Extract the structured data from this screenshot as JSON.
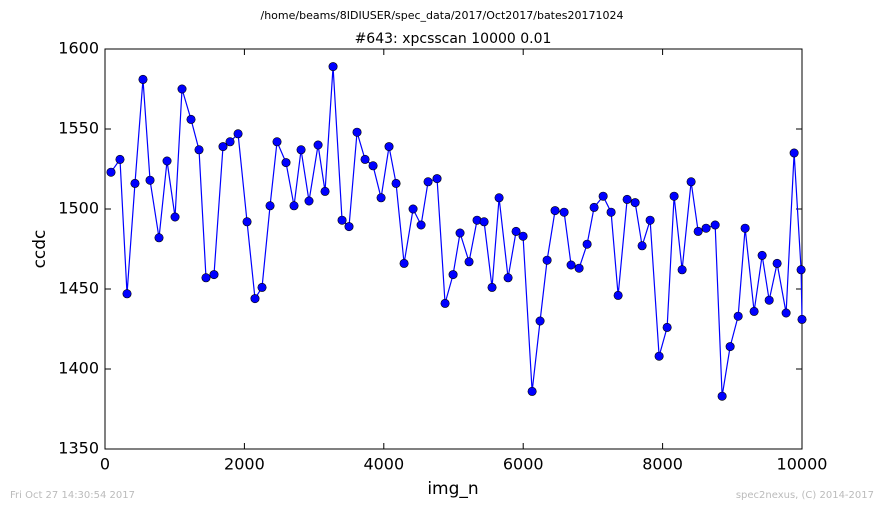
{
  "chart_data": {
    "type": "line",
    "suptitle": "/home/beams/8IDIUSER/spec_data/2017/Oct2017/bates20171024",
    "title": "#643: xpcsscan 10000 0.01",
    "x_label": "img_n",
    "y_label": "ccdc",
    "footer_left": "Fri Oct 27 14:30:54 2017",
    "footer_right": "spec2nexus, (C) 2014-2017",
    "xlim": [
      0,
      10000
    ],
    "xticks": [
      0,
      2000,
      4000,
      6000,
      8000,
      10000
    ],
    "ylim": [
      1350,
      1600
    ],
    "yticks": [
      1350,
      1400,
      1450,
      1500,
      1550,
      1600
    ],
    "grid": false,
    "series": [
      {
        "color": "#0000ff",
        "x": [
          86,
          215,
          316,
          430,
          545,
          646,
          775,
          890,
          1005,
          1105,
          1234,
          1349,
          1449,
          1564,
          1693,
          1794,
          1909,
          2038,
          2152,
          2253,
          2368,
          2468,
          2597,
          2712,
          2813,
          2927,
          3057,
          3157,
          3272,
          3401,
          3501,
          3616,
          3731,
          3846,
          3961,
          4075,
          4176,
          4291,
          4420,
          4535,
          4635,
          4764,
          4879,
          4994,
          5094,
          5223,
          5338,
          5439,
          5553,
          5654,
          5783,
          5898,
          5998,
          6128,
          6242,
          6343,
          6457,
          6587,
          6687,
          6802,
          6917,
          7017,
          7147,
          7261,
          7362,
          7491,
          7606,
          7706,
          7821,
          7950,
          8065,
          8165,
          8280,
          8409,
          8510,
          8624,
          8754,
          8854,
          8969,
          9084,
          9184,
          9313,
          9428,
          9529,
          9643,
          9772,
          9887,
          9987,
          10000
        ],
        "values": [
          1523,
          1531,
          1447,
          1516,
          1581,
          1518,
          1482,
          1530,
          1495,
          1575,
          1556,
          1537,
          1457,
          1459,
          1539,
          1542,
          1547,
          1492,
          1444,
          1451,
          1502,
          1542,
          1529,
          1502,
          1537,
          1505,
          1540,
          1511,
          1589,
          1493,
          1489,
          1548,
          1531,
          1527,
          1507,
          1539,
          1516,
          1466,
          1500,
          1490,
          1517,
          1519,
          1441,
          1459,
          1485,
          1467,
          1493,
          1492,
          1451,
          1507,
          1457,
          1486,
          1483,
          1386,
          1430,
          1468,
          1499,
          1498,
          1465,
          1463,
          1478,
          1501,
          1508,
          1498,
          1446,
          1506,
          1504,
          1477,
          1493,
          1408,
          1426,
          1508,
          1462,
          1517,
          1486,
          1488,
          1490,
          1383,
          1414,
          1433,
          1488,
          1436,
          1471,
          1443,
          1466,
          1435,
          1535,
          1462,
          1431
        ]
      }
    ]
  }
}
